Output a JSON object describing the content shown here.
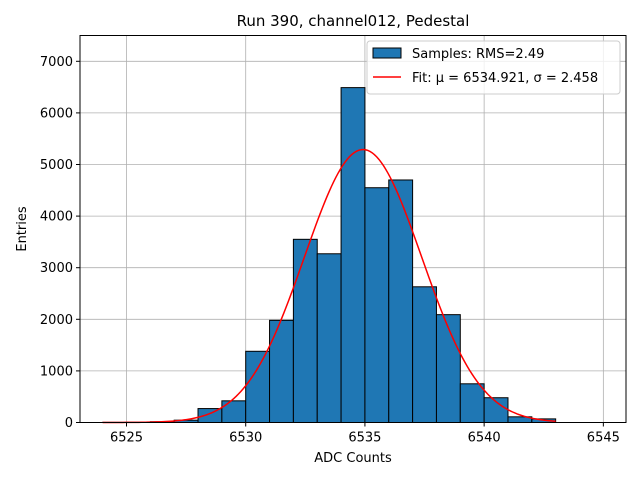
{
  "chart_data": {
    "type": "bar",
    "title": "Run 390, channel012, Pedestal",
    "xlabel": "ADC Counts",
    "ylabel": "Entries",
    "xlim": [
      6523.05,
      6545.95
    ],
    "ylim": [
      0,
      7500
    ],
    "xticks": [
      6525,
      6530,
      6535,
      6540,
      6545
    ],
    "yticks": [
      0,
      1000,
      2000,
      3000,
      4000,
      5000,
      6000,
      7000
    ],
    "grid": true,
    "legend_position": "top-right",
    "histogram": {
      "name": "Samples: RMS=2.49",
      "color": "#1f77b4",
      "edge_color": "#000000",
      "bin_width": 1,
      "bins": [
        {
          "x0": 6524,
          "value": 3
        },
        {
          "x0": 6525,
          "value": 5
        },
        {
          "x0": 6526,
          "value": 15
        },
        {
          "x0": 6527,
          "value": 45
        },
        {
          "x0": 6528,
          "value": 270
        },
        {
          "x0": 6529,
          "value": 420
        },
        {
          "x0": 6530,
          "value": 1380
        },
        {
          "x0": 6531,
          "value": 1980
        },
        {
          "x0": 6532,
          "value": 3550
        },
        {
          "x0": 6533,
          "value": 3270
        },
        {
          "x0": 6534,
          "value": 6490
        },
        {
          "x0": 6535,
          "value": 4550
        },
        {
          "x0": 6536,
          "value": 4700
        },
        {
          "x0": 6537,
          "value": 2630
        },
        {
          "x0": 6538,
          "value": 2090
        },
        {
          "x0": 6539,
          "value": 750
        },
        {
          "x0": 6540,
          "value": 480
        },
        {
          "x0": 6541,
          "value": 110
        },
        {
          "x0": 6542,
          "value": 70
        }
      ]
    },
    "fit": {
      "name": "Fit: μ = 6534.921, σ = 2.458",
      "color": "#ff0000",
      "mu": 6534.921,
      "sigma": 2.458,
      "amplitude": 5290,
      "x_range": [
        6524,
        6543
      ]
    }
  }
}
